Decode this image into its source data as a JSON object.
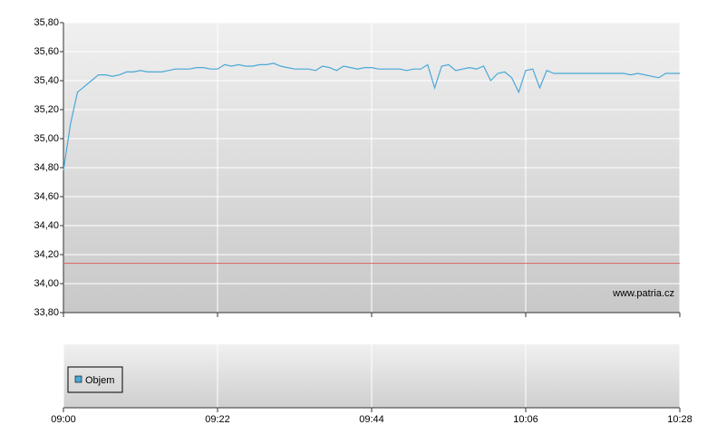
{
  "chart_data": [
    {
      "type": "line",
      "annotation": "www.patria.cz",
      "x": [
        "09:00",
        "09:01",
        "09:02",
        "09:03",
        "09:04",
        "09:05",
        "09:06",
        "09:07",
        "09:08",
        "09:09",
        "09:10",
        "09:11",
        "09:12",
        "09:13",
        "09:14",
        "09:15",
        "09:16",
        "09:17",
        "09:18",
        "09:19",
        "09:20",
        "09:21",
        "09:22",
        "09:23",
        "09:24",
        "09:25",
        "09:26",
        "09:27",
        "09:28",
        "09:29",
        "09:30",
        "09:31",
        "09:32",
        "09:33",
        "09:34",
        "09:35",
        "09:36",
        "09:37",
        "09:38",
        "09:39",
        "09:40",
        "09:41",
        "09:42",
        "09:43",
        "09:44",
        "09:45",
        "09:46",
        "09:47",
        "09:48",
        "09:49",
        "09:50",
        "09:51",
        "09:52",
        "09:53",
        "09:54",
        "09:55",
        "09:56",
        "09:57",
        "09:58",
        "09:59",
        "10:00",
        "10:01",
        "10:02",
        "10:03",
        "10:04",
        "10:05",
        "10:06",
        "10:07",
        "10:08",
        "10:09",
        "10:10",
        "10:11",
        "10:12",
        "10:13",
        "10:14",
        "10:15",
        "10:16",
        "10:17",
        "10:18",
        "10:19",
        "10:20",
        "10:21",
        "10:22",
        "10:23",
        "10:24",
        "10:25",
        "10:26",
        "10:27",
        "10:28"
      ],
      "series": [
        {
          "color": "#4aa8d8",
          "values": [
            34.78,
            35.1,
            35.32,
            35.36,
            35.4,
            35.44,
            35.44,
            35.43,
            35.44,
            35.46,
            35.46,
            35.47,
            35.46,
            35.46,
            35.46,
            35.47,
            35.48,
            35.48,
            35.48,
            35.49,
            35.49,
            35.48,
            35.48,
            35.51,
            35.5,
            35.51,
            35.5,
            35.5,
            35.51,
            35.51,
            35.52,
            35.5,
            35.49,
            35.48,
            35.48,
            35.48,
            35.47,
            35.5,
            35.49,
            35.47,
            35.5,
            35.49,
            35.48,
            35.49,
            35.49,
            35.48,
            35.48,
            35.48,
            35.48,
            35.47,
            35.48,
            35.48,
            35.51,
            35.35,
            35.5,
            35.51,
            35.47,
            35.48,
            35.49,
            35.48,
            35.5,
            35.4,
            35.45,
            35.46,
            35.42,
            35.32,
            35.47,
            35.48,
            35.35,
            35.47,
            35.45,
            35.45,
            35.45,
            35.45,
            35.45,
            35.45,
            35.45,
            35.45,
            35.45,
            35.45,
            35.45,
            35.44,
            35.45,
            35.44,
            35.43,
            35.42,
            35.45,
            35.45,
            35.45
          ]
        }
      ],
      "reference_line": {
        "value": 34.14,
        "color": "#e06060"
      },
      "xlim": [
        "09:00",
        "10:28"
      ],
      "xticks": [
        "09:00",
        "09:22",
        "09:44",
        "10:06",
        "10:28"
      ],
      "ylim": [
        33.8,
        35.8
      ],
      "yticks": [
        {
          "value": 33.8,
          "label": "33,80"
        },
        {
          "value": 34.0,
          "label": "34,00"
        },
        {
          "value": 34.2,
          "label": "34,20"
        },
        {
          "value": 34.4,
          "label": "34,40"
        },
        {
          "value": 34.6,
          "label": "34,60"
        },
        {
          "value": 34.8,
          "label": "34,80"
        },
        {
          "value": 35.0,
          "label": "35,00"
        },
        {
          "value": 35.2,
          "label": "35,20"
        },
        {
          "value": 35.4,
          "label": "35,40"
        },
        {
          "value": 35.6,
          "label": "35,60"
        },
        {
          "value": 35.8,
          "label": "35,80"
        }
      ],
      "grid": true
    },
    {
      "type": "bar",
      "series": [
        {
          "name": "Objem",
          "color": "#4aa8d8"
        }
      ]
    }
  ]
}
